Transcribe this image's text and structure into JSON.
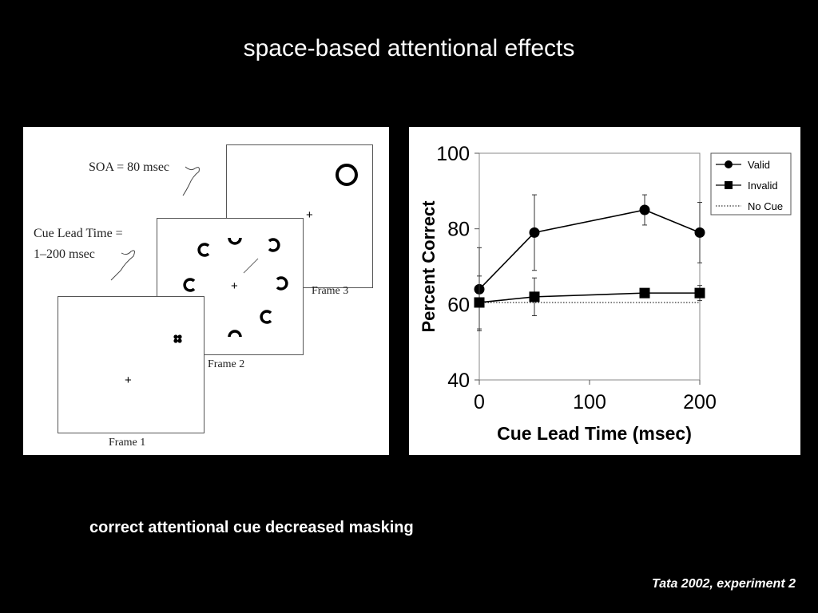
{
  "slide": {
    "title": "space-based attentional effects",
    "caption": "correct attentional cue decreased masking",
    "credit": "Tata 2002, experiment 2"
  },
  "diagram": {
    "soa_label": "SOA = 80 msec",
    "cue_lead_line1": "Cue Lead Time =",
    "cue_lead_line2": "1–200 msec",
    "frame1_label": "Frame 1",
    "frame2_label": "Frame 2",
    "frame3_label": "Frame 3",
    "fixation": "+"
  },
  "chart_data": {
    "type": "line",
    "xlabel": "Cue Lead Time (msec)",
    "ylabel": "Percent Correct",
    "x": [
      0,
      50,
      150,
      200
    ],
    "xlim": [
      0,
      200
    ],
    "ylim": [
      40,
      100
    ],
    "xticks": [
      0,
      100,
      200
    ],
    "yticks": [
      40,
      60,
      80,
      100
    ],
    "legend_position": "top-right",
    "series": [
      {
        "name": "Valid",
        "marker": "circle",
        "values": [
          64,
          79,
          85,
          79
        ],
        "error": [
          11,
          10,
          4,
          8
        ]
      },
      {
        "name": "Invalid",
        "marker": "square",
        "values": [
          60.5,
          62,
          63,
          63
        ],
        "error": [
          7,
          5,
          1,
          2
        ]
      },
      {
        "name": "No Cue",
        "marker": "none",
        "style": "dotted",
        "values": [
          60.5,
          60.5,
          60.5,
          60.5
        ]
      }
    ]
  }
}
